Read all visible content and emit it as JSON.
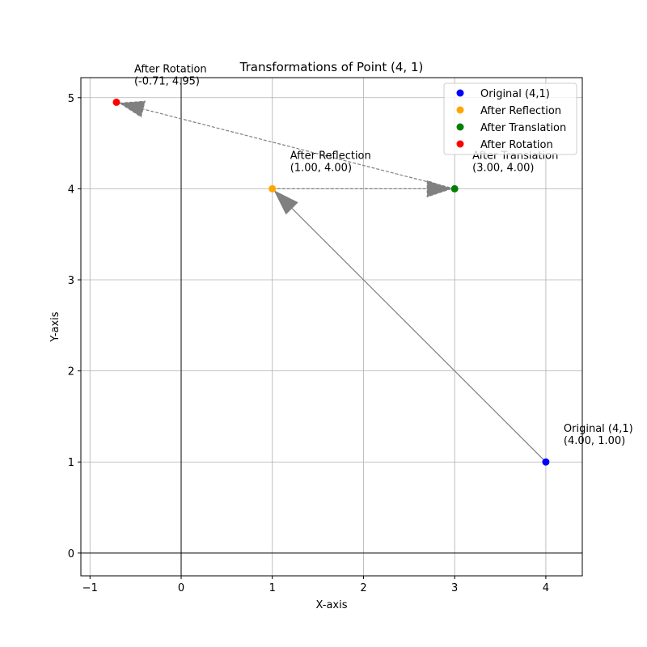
{
  "chart_data": {
    "type": "scatter",
    "title": "Transformations of Point (4, 1)",
    "xlabel": "X-axis",
    "ylabel": "Y-axis",
    "xlim": [
      -1.1,
      4.4
    ],
    "ylim": [
      -0.25,
      5.22
    ],
    "xticks": [
      -1,
      0,
      1,
      2,
      3,
      4
    ],
    "yticks": [
      0,
      1,
      2,
      3,
      4,
      5
    ],
    "grid": true,
    "legend_position": "top-right",
    "series": [
      {
        "name": "Original (4,1)",
        "x": 4.0,
        "y": 1.0,
        "color": "#0000ff",
        "label_line1": "Original (4,1)",
        "label_line2": "(4.00, 1.00)"
      },
      {
        "name": "After Reflection",
        "x": 1.0,
        "y": 4.0,
        "color": "#ffa500",
        "label_line1": "After Reflection",
        "label_line2": "(1.00, 4.00)"
      },
      {
        "name": "After Translation",
        "x": 3.0,
        "y": 4.0,
        "color": "#008000",
        "label_line1": "After Translation",
        "label_line2": "(3.00, 4.00)"
      },
      {
        "name": "After Rotation",
        "x": -0.71,
        "y": 4.95,
        "color": "#ff0000",
        "label_line1": "After Rotation",
        "label_line2": "(-0.71, 4.95)"
      }
    ],
    "arrows": [
      {
        "from": 0,
        "to": 1,
        "style": "solid",
        "color": "#808080"
      },
      {
        "from": 1,
        "to": 2,
        "style": "dashed",
        "color": "#808080"
      },
      {
        "from": 2,
        "to": 3,
        "style": "dashed",
        "color": "#808080"
      }
    ]
  }
}
